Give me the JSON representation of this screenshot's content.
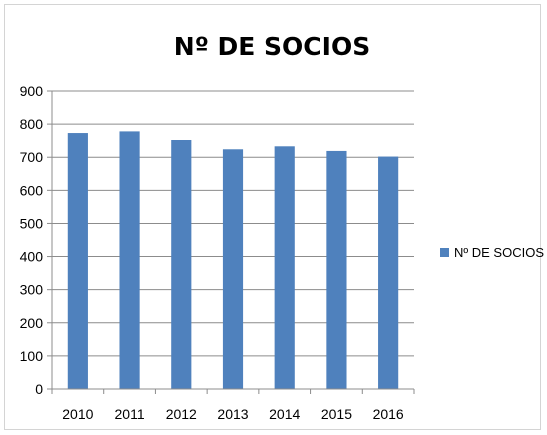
{
  "chart_data": {
    "type": "bar",
    "title": "Nº DE SOCIOS",
    "xlabel": "",
    "ylabel": "",
    "categories": [
      "2010",
      "2011",
      "2012",
      "2013",
      "2014",
      "2015",
      "2016"
    ],
    "series": [
      {
        "name": "Nº DE SOCIOS",
        "values": [
          773,
          778,
          752,
          724,
          733,
          719,
          702
        ],
        "color": "#4f81bd"
      }
    ],
    "ylim": [
      0,
      900
    ],
    "yticks": [
      0,
      100,
      200,
      300,
      400,
      500,
      600,
      700,
      800,
      900
    ],
    "grid": true,
    "legend": "right"
  }
}
